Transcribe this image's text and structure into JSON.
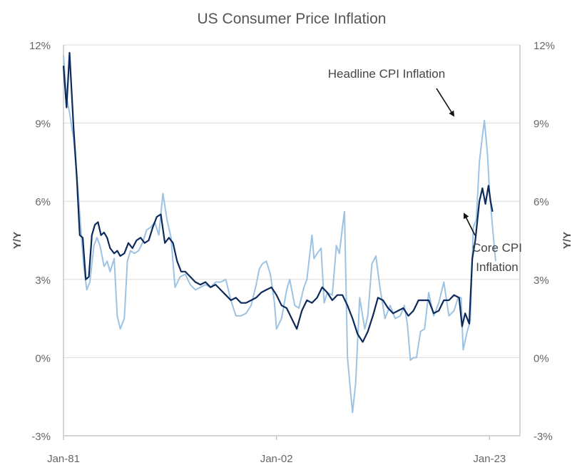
{
  "chart_data": {
    "type": "line",
    "title": "US Consumer Price Inflation",
    "ylabel_left": "Y/Y",
    "ylabel_right": "Y/Y",
    "ylim": [
      -3,
      12
    ],
    "yticks": [
      -3,
      0,
      3,
      6,
      9,
      12
    ],
    "ytick_labels": [
      "-3%",
      "0%",
      "3%",
      "6%",
      "9%",
      "12%"
    ],
    "xlim": [
      1981.0,
      2026.0
    ],
    "xticks": [
      1981.0,
      2002.0,
      2023.0
    ],
    "xtick_labels": [
      "Jan-81",
      "Jan-02",
      "Jan-23"
    ],
    "grid": "horizontal",
    "colors": {
      "headline": "#9cc3e4",
      "core": "#0d2a5c",
      "grid": "#dddddd",
      "axis": "#bbbbbb",
      "text": "#666666"
    },
    "series": [
      {
        "name": "Headline CPI Inflation",
        "key": "headline",
        "x": [
          1981.0,
          1981.3,
          1981.6,
          1982.0,
          1982.4,
          1982.7,
          1983.0,
          1983.3,
          1983.6,
          1984.0,
          1984.3,
          1984.6,
          1985.0,
          1985.3,
          1985.6,
          1986.0,
          1986.3,
          1986.6,
          1987.0,
          1987.3,
          1987.6,
          1988.0,
          1988.4,
          1988.8,
          1989.2,
          1989.6,
          1990.0,
          1990.4,
          1990.8,
          1991.2,
          1991.6,
          1992.0,
          1992.5,
          1993.0,
          1993.5,
          1994.0,
          1994.5,
          1995.0,
          1995.5,
          1996.0,
          1996.5,
          1997.0,
          1997.5,
          1998.0,
          1998.5,
          1999.0,
          1999.5,
          2000.0,
          2000.3,
          2000.6,
          2001.0,
          2001.4,
          2001.8,
          2002.0,
          2002.5,
          2003.0,
          2003.3,
          2003.8,
          2004.2,
          2004.7,
          2005.0,
          2005.5,
          2005.7,
          2006.0,
          2006.4,
          2006.7,
          2007.0,
          2007.5,
          2007.9,
          2008.2,
          2008.5,
          2008.7,
          2009.0,
          2009.3,
          2009.5,
          2009.8,
          2010.2,
          2010.7,
          2011.0,
          2011.4,
          2011.8,
          2012.2,
          2012.7,
          2013.2,
          2013.7,
          2014.2,
          2014.6,
          2014.9,
          2015.2,
          2015.5,
          2015.8,
          2016.2,
          2016.6,
          2017.0,
          2017.5,
          2018.0,
          2018.5,
          2019.0,
          2019.5,
          2019.9,
          2020.2,
          2020.4,
          2020.8,
          2021.1,
          2021.4,
          2021.7,
          2022.0,
          2022.3,
          2022.5,
          2022.8,
          2023.0,
          2023.3,
          2023.6
        ],
        "y": [
          11.6,
          10.0,
          9.4,
          8.4,
          6.6,
          5.0,
          3.5,
          2.6,
          2.9,
          4.3,
          4.6,
          4.3,
          3.5,
          3.7,
          3.3,
          3.8,
          1.6,
          1.1,
          1.5,
          3.7,
          4.1,
          4.0,
          4.1,
          4.4,
          4.9,
          5.0,
          5.2,
          4.7,
          6.3,
          5.3,
          4.6,
          2.7,
          3.1,
          3.2,
          2.8,
          2.6,
          2.7,
          2.8,
          2.7,
          2.9,
          2.9,
          3.0,
          2.2,
          1.6,
          1.6,
          1.7,
          2.0,
          2.8,
          3.4,
          3.6,
          3.7,
          3.2,
          2.1,
          1.1,
          1.5,
          2.6,
          3.0,
          2.0,
          1.9,
          2.7,
          3.0,
          4.7,
          3.8,
          4.0,
          4.2,
          2.1,
          2.5,
          2.4,
          4.3,
          4.0,
          5.0,
          5.6,
          0.0,
          -1.3,
          -2.1,
          -1.0,
          2.3,
          1.1,
          1.6,
          3.6,
          3.9,
          2.7,
          1.5,
          2.0,
          1.5,
          1.6,
          2.0,
          1.3,
          -0.1,
          0.0,
          0.0,
          1.0,
          1.1,
          2.5,
          1.6,
          2.1,
          2.9,
          1.6,
          1.8,
          2.3,
          2.3,
          0.3,
          1.0,
          1.4,
          5.0,
          5.3,
          7.5,
          8.5,
          9.1,
          7.8,
          6.4,
          5.0,
          3.7
        ]
      },
      {
        "name": "Core CPI Inflation",
        "key": "core",
        "x": [
          1981.0,
          1981.3,
          1981.6,
          1982.0,
          1982.3,
          1982.6,
          1982.9,
          1983.2,
          1983.5,
          1983.8,
          1984.1,
          1984.4,
          1984.7,
          1985.0,
          1985.3,
          1985.6,
          1986.0,
          1986.3,
          1986.6,
          1987.0,
          1987.4,
          1987.8,
          1988.2,
          1988.6,
          1989.0,
          1989.4,
          1989.8,
          1990.2,
          1990.6,
          1991.0,
          1991.4,
          1991.8,
          1992.2,
          1992.6,
          1993.0,
          1993.5,
          1994.0,
          1994.5,
          1995.0,
          1995.5,
          1996.0,
          1996.5,
          1997.0,
          1997.5,
          1998.0,
          1998.5,
          1999.0,
          1999.5,
          2000.0,
          2000.5,
          2001.0,
          2001.5,
          2002.0,
          2002.5,
          2003.0,
          2003.5,
          2004.0,
          2004.5,
          2005.0,
          2005.5,
          2006.0,
          2006.5,
          2007.0,
          2007.5,
          2008.0,
          2008.5,
          2009.0,
          2009.5,
          2010.0,
          2010.5,
          2011.0,
          2011.5,
          2012.0,
          2012.5,
          2013.0,
          2013.5,
          2014.0,
          2014.5,
          2015.0,
          2015.5,
          2016.0,
          2016.5,
          2017.0,
          2017.5,
          2018.0,
          2018.5,
          2019.0,
          2019.5,
          2020.0,
          2020.3,
          2020.6,
          2021.0,
          2021.3,
          2021.6,
          2022.0,
          2022.3,
          2022.6,
          2022.9,
          2023.1,
          2023.3
        ],
        "y": [
          11.2,
          9.6,
          11.7,
          8.8,
          7.0,
          4.7,
          4.6,
          3.0,
          3.1,
          4.7,
          5.1,
          5.2,
          4.7,
          4.8,
          4.6,
          4.2,
          4.0,
          4.1,
          3.9,
          4.0,
          4.4,
          4.2,
          4.5,
          4.6,
          4.4,
          4.5,
          5.0,
          5.4,
          5.5,
          4.4,
          4.6,
          4.4,
          3.7,
          3.3,
          3.3,
          3.1,
          2.9,
          2.8,
          2.9,
          2.7,
          2.8,
          2.6,
          2.4,
          2.2,
          2.3,
          2.1,
          2.1,
          2.2,
          2.3,
          2.5,
          2.6,
          2.7,
          2.4,
          2.0,
          1.9,
          1.5,
          1.1,
          1.8,
          2.2,
          2.1,
          2.3,
          2.7,
          2.5,
          2.2,
          2.4,
          2.4,
          2.0,
          1.5,
          0.9,
          0.6,
          1.0,
          1.6,
          2.3,
          2.2,
          1.9,
          1.7,
          1.8,
          1.9,
          1.6,
          1.8,
          2.2,
          2.2,
          2.2,
          1.7,
          1.8,
          2.2,
          2.2,
          2.4,
          2.3,
          1.2,
          1.7,
          1.3,
          3.8,
          4.5,
          6.0,
          6.5,
          5.9,
          6.6,
          6.0,
          5.6
        ]
      }
    ],
    "annotations": [
      {
        "text": "Headline CPI Inflation",
        "target_series": "headline"
      },
      {
        "text": "Core CPI",
        "text2": "Inflation",
        "target_series": "core"
      }
    ]
  }
}
